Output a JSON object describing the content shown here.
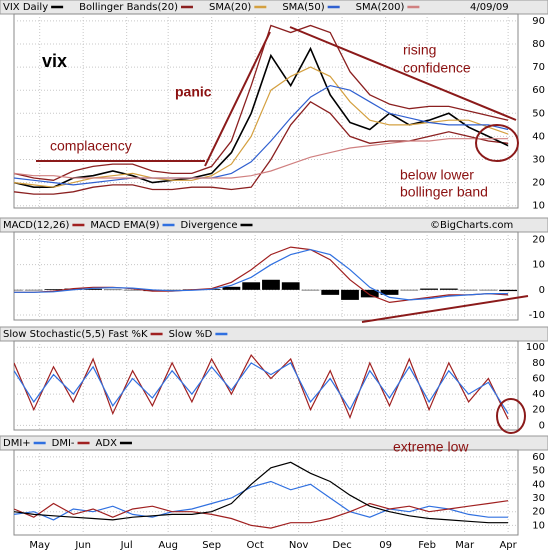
{
  "date": "4/09/09",
  "source": "©BigCharts.com",
  "x_axis": {
    "xlim": [
      0,
      25.5
    ],
    "xticks": [
      {
        "value": 1.3,
        "label": "May"
      },
      {
        "value": 3.5,
        "label": "Jun"
      },
      {
        "value": 5.7,
        "label": "Jul"
      },
      {
        "value": 7.8,
        "label": "Aug"
      },
      {
        "value": 10.0,
        "label": "Sep"
      },
      {
        "value": 12.2,
        "label": "Oct"
      },
      {
        "value": 14.4,
        "label": "Nov"
      },
      {
        "value": 16.6,
        "label": "Dec"
      },
      {
        "value": 18.8,
        "label": "09"
      },
      {
        "value": 20.9,
        "label": "Feb"
      },
      {
        "value": 22.8,
        "label": "Mar"
      },
      {
        "value": 25.0,
        "label": "Apr"
      }
    ]
  },
  "chart_data": [
    {
      "type": "line",
      "ylim": [
        9,
        93
      ],
      "yticks": [
        10,
        20,
        30,
        40,
        50,
        60,
        70,
        80,
        90
      ],
      "grid": true,
      "series": [
        {
          "name": "VIX Daily",
          "color": "#000000",
          "values": [
            20,
            18,
            18,
            22,
            23,
            25,
            23,
            20,
            21,
            22,
            24,
            33,
            50,
            75,
            62,
            78,
            58,
            46,
            43,
            50,
            45,
            47,
            50,
            44,
            40,
            36
          ]
        },
        {
          "name": "SMA(20)",
          "color": "#d4a040",
          "values": [
            20,
            19,
            18,
            20,
            22,
            23,
            24,
            22,
            21,
            21,
            23,
            28,
            40,
            60,
            66,
            70,
            66,
            55,
            47,
            45,
            45,
            46,
            47,
            47,
            44,
            41
          ]
        },
        {
          "name": "SMA(50)",
          "color": "#3060d0",
          "values": [
            22,
            21,
            20,
            19,
            20,
            21,
            22,
            22,
            22,
            22,
            22,
            24,
            29,
            38,
            48,
            57,
            62,
            60,
            55,
            50,
            48,
            46,
            45,
            45,
            45,
            43
          ]
        },
        {
          "name": "SMA(200)",
          "color": "#d08080",
          "values": [
            24,
            23,
            23,
            22,
            22,
            22,
            22,
            22,
            22,
            22,
            22,
            22,
            23,
            25,
            28,
            31,
            33,
            35,
            36,
            37,
            38,
            38,
            39,
            39,
            39,
            39
          ]
        }
      ],
      "bands": {
        "name": "Bollinger Bands(20)",
        "color": "#8b2020",
        "upper": [
          24,
          22,
          21,
          25,
          27,
          28,
          28,
          25,
          24,
          24,
          27,
          38,
          62,
          88,
          85,
          88,
          85,
          68,
          58,
          54,
          52,
          53,
          53,
          51,
          49,
          47
        ],
        "lower": [
          16,
          15,
          15,
          16,
          18,
          19,
          19,
          17,
          17,
          18,
          18,
          17,
          18,
          30,
          45,
          55,
          50,
          40,
          37,
          38,
          38,
          40,
          42,
          40,
          38,
          37
        ]
      },
      "annotations": [
        {
          "lines": [
            "vix"
          ],
          "style": "bold-black"
        },
        {
          "lines": [
            "panic"
          ],
          "style": "bold"
        },
        {
          "lines": [
            "complacency"
          ],
          "style": "plain"
        },
        {
          "lines": [
            "rising",
            "confidence"
          ],
          "style": "plain"
        },
        {
          "lines": [
            "below lower",
            "bollinger band"
          ],
          "style": "plain"
        }
      ]
    },
    {
      "type": "line",
      "ylim": [
        -12,
        23
      ],
      "yticks": [
        -10,
        0,
        10,
        20
      ],
      "grid": true,
      "series": [
        {
          "name": "MACD(12,26)",
          "color": "#a02020",
          "values": [
            -1,
            -1,
            -0.5,
            0.5,
            1,
            1,
            0.5,
            -0.5,
            -0.5,
            0,
            0.5,
            3,
            8,
            14,
            17,
            16,
            12,
            4,
            -2,
            -5,
            -4,
            -3,
            -2,
            -2,
            -1.5,
            -2
          ]
        },
        {
          "name": "MACD EMA(9)",
          "color": "#3070e0",
          "values": [
            -1,
            -1,
            -0.8,
            0,
            0.6,
            0.9,
            0.7,
            0,
            -0.4,
            -0.2,
            0.2,
            1.8,
            5,
            10,
            14,
            16,
            14,
            8,
            1,
            -3,
            -4,
            -3.5,
            -2.5,
            -2,
            -1.5,
            -1.5
          ]
        },
        {
          "name": "Divergence",
          "color": "#000000",
          "kind": "histogram",
          "values": [
            0,
            0,
            0.3,
            0.5,
            0.4,
            0.1,
            -0.2,
            -0.5,
            -0.1,
            0.2,
            0.3,
            1.2,
            3,
            4,
            3,
            0,
            -2,
            -4,
            -3,
            -2,
            0,
            0.5,
            0.5,
            0,
            0,
            -0.5
          ]
        }
      ]
    },
    {
      "type": "line",
      "ylim": [
        -6,
        108
      ],
      "yticks": [
        0,
        20,
        40,
        60,
        80,
        100
      ],
      "grid": true,
      "series": [
        {
          "name": "Slow Stochastic(5,5) Fast %K",
          "color": "#a02020",
          "values": [
            80,
            20,
            75,
            30,
            85,
            15,
            70,
            25,
            80,
            30,
            85,
            40,
            90,
            60,
            85,
            20,
            70,
            10,
            80,
            25,
            85,
            20,
            80,
            30,
            60,
            8
          ]
        },
        {
          "name": "Slow %D",
          "color": "#3070e0",
          "values": [
            70,
            30,
            65,
            40,
            75,
            25,
            60,
            35,
            70,
            40,
            75,
            45,
            80,
            65,
            80,
            30,
            60,
            20,
            70,
            35,
            75,
            30,
            70,
            40,
            55,
            15
          ]
        }
      ]
    },
    {
      "type": "line",
      "ylim": [
        3,
        65
      ],
      "yticks": [
        10,
        20,
        30,
        40,
        50,
        60
      ],
      "grid": true,
      "series": [
        {
          "name": "DMI+",
          "color": "#3070e0",
          "values": [
            18,
            20,
            14,
            22,
            20,
            24,
            18,
            16,
            20,
            22,
            26,
            30,
            38,
            42,
            36,
            40,
            30,
            20,
            16,
            22,
            20,
            24,
            22,
            18,
            16,
            16
          ]
        },
        {
          "name": "DMI-",
          "color": "#a02020",
          "values": [
            22,
            16,
            26,
            18,
            22,
            16,
            22,
            24,
            20,
            20,
            18,
            15,
            10,
            8,
            12,
            12,
            15,
            20,
            26,
            22,
            24,
            20,
            22,
            24,
            26,
            28
          ]
        },
        {
          "name": "ADX",
          "color": "#000000",
          "values": [
            20,
            18,
            17,
            16,
            15,
            14,
            16,
            17,
            18,
            18,
            20,
            26,
            40,
            52,
            56,
            48,
            42,
            32,
            24,
            20,
            17,
            15,
            14,
            13,
            12,
            12
          ]
        }
      ],
      "annotations": [
        {
          "lines": [
            "extreme low"
          ],
          "style": "plain"
        }
      ]
    }
  ]
}
